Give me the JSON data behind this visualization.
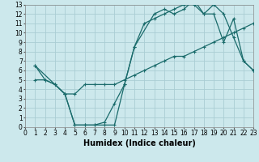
{
  "xlabel": "Humidex (Indice chaleur)",
  "bg_color": "#cce8ec",
  "grid_color": "#aacdd4",
  "line_color": "#1a6b6b",
  "line1_x": [
    1,
    2,
    3,
    4,
    5,
    6,
    7,
    8,
    9,
    10,
    11,
    12,
    13,
    14,
    15,
    16,
    17,
    18,
    19,
    20,
    21,
    22,
    23
  ],
  "line1_y": [
    5,
    5,
    4.5,
    3.5,
    3.5,
    4.5,
    4.5,
    4.5,
    4.5,
    5,
    5.5,
    6,
    6.5,
    7,
    7.5,
    7.5,
    8,
    8.5,
    9,
    9.5,
    10,
    10.5,
    11
  ],
  "line2_x": [
    1,
    3,
    4,
    5,
    6,
    7,
    8,
    9,
    10,
    11,
    12,
    13,
    14,
    15,
    16,
    17,
    18,
    19,
    20,
    21,
    22,
    23
  ],
  "line2_y": [
    6.5,
    4.5,
    3.5,
    0.2,
    0.2,
    0.2,
    0.2,
    0.2,
    4.5,
    8.5,
    11,
    11.5,
    12,
    12.5,
    13,
    13,
    12,
    12,
    9,
    11.5,
    7,
    6
  ],
  "line3_x": [
    1,
    2,
    3,
    4,
    5,
    6,
    7,
    8,
    9,
    10,
    11,
    13,
    14,
    15,
    16,
    17,
    18,
    19,
    20,
    21,
    22,
    23
  ],
  "line3_y": [
    6.5,
    5,
    4.5,
    3.5,
    0.2,
    0.2,
    0.2,
    0.5,
    2.5,
    4.5,
    8.5,
    12,
    12.5,
    12,
    12.5,
    13.5,
    12,
    13,
    12,
    9.5,
    7,
    6
  ],
  "xlim": [
    0,
    23
  ],
  "ylim": [
    0,
    13
  ],
  "xticks": [
    0,
    1,
    2,
    3,
    4,
    5,
    6,
    7,
    8,
    9,
    10,
    11,
    12,
    13,
    14,
    15,
    16,
    17,
    18,
    19,
    20,
    21,
    22,
    23
  ],
  "yticks": [
    0,
    1,
    2,
    3,
    4,
    5,
    6,
    7,
    8,
    9,
    10,
    11,
    12,
    13
  ],
  "tick_fontsize": 5.5,
  "label_fontsize": 7.0
}
